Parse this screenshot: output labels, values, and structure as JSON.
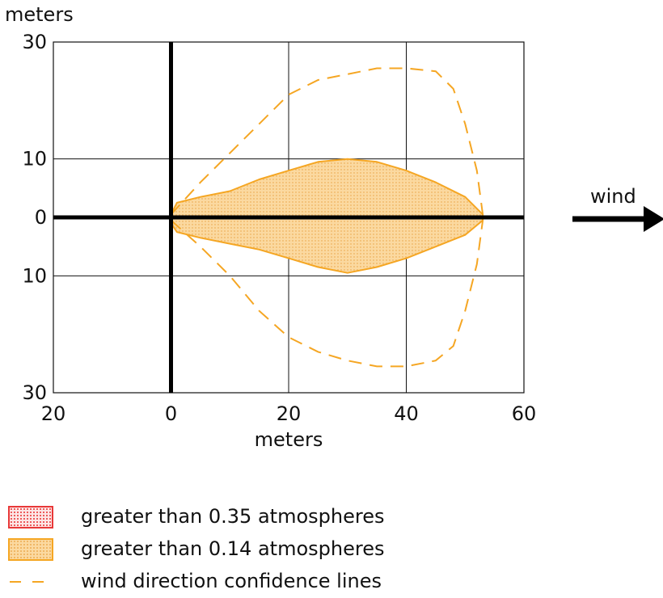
{
  "chart_data": {
    "type": "area",
    "title": "",
    "xlabel": "meters",
    "ylabel": "meters",
    "xlim": [
      -20,
      60
    ],
    "ylim": [
      -30,
      30
    ],
    "x_ticks": [
      -20,
      0,
      20,
      40,
      60
    ],
    "x_tick_labels": [
      "20",
      "0",
      "20",
      "40",
      "60"
    ],
    "y_ticks": [
      30,
      10,
      0,
      -10,
      -30
    ],
    "y_tick_labels": [
      "30",
      "10",
      "0",
      "10",
      "30"
    ],
    "grid": true,
    "axes_through_origin": true,
    "series": [
      {
        "name": "greater than 0.14 atmospheres",
        "style": "filled-region",
        "color": "#f5a623",
        "fill": "#fbd9a0",
        "upper": {
          "x": [
            0,
            1,
            5,
            10,
            15,
            20,
            25,
            30,
            35,
            40,
            45,
            50,
            53
          ],
          "y": [
            0.5,
            2.5,
            3.5,
            4.5,
            6.5,
            8,
            9.5,
            10,
            9.5,
            8,
            6,
            3.5,
            0.5
          ]
        },
        "lower": {
          "x": [
            0,
            1,
            5,
            10,
            15,
            20,
            25,
            30,
            35,
            40,
            45,
            50,
            53
          ],
          "y": [
            -1,
            -2.5,
            -3.5,
            -4.5,
            -5.5,
            -7,
            -8.5,
            -9.5,
            -8.5,
            -7,
            -5,
            -3,
            -0.5
          ]
        }
      },
      {
        "name": "wind direction confidence lines",
        "style": "dashed",
        "color": "#f5a623",
        "upper": {
          "x": [
            0,
            5,
            10,
            15,
            20,
            25,
            30,
            35,
            40,
            45,
            48,
            50,
            52,
            53
          ],
          "y": [
            0.5,
            6,
            11,
            16,
            21,
            23.5,
            24.5,
            25.5,
            25.5,
            25,
            22,
            16,
            8,
            0.5
          ]
        },
        "lower": {
          "x": [
            0,
            5,
            10,
            15,
            20,
            25,
            30,
            35,
            40,
            45,
            48,
            50,
            52,
            53
          ],
          "y": [
            -0.5,
            -5,
            -10,
            -16,
            -20.5,
            -23,
            -24.5,
            -25.5,
            -25.5,
            -24.5,
            -22,
            -16,
            -8,
            -0.5
          ]
        }
      }
    ],
    "annotations": [
      {
        "text": "wind",
        "kind": "arrow",
        "direction": "right"
      }
    ],
    "legend_position": "bottom",
    "legend": [
      {
        "label": "greater than 0.35 atmospheres",
        "swatch": "dotted-box",
        "color": "#e83838",
        "fill": "#fde6e6"
      },
      {
        "label": "greater than 0.14 atmospheres",
        "swatch": "filled-box",
        "color": "#f5a623",
        "fill": "#fbd9a0"
      },
      {
        "label": "wind direction confidence lines",
        "swatch": "dashed-line",
        "color": "#f5a623"
      }
    ]
  }
}
